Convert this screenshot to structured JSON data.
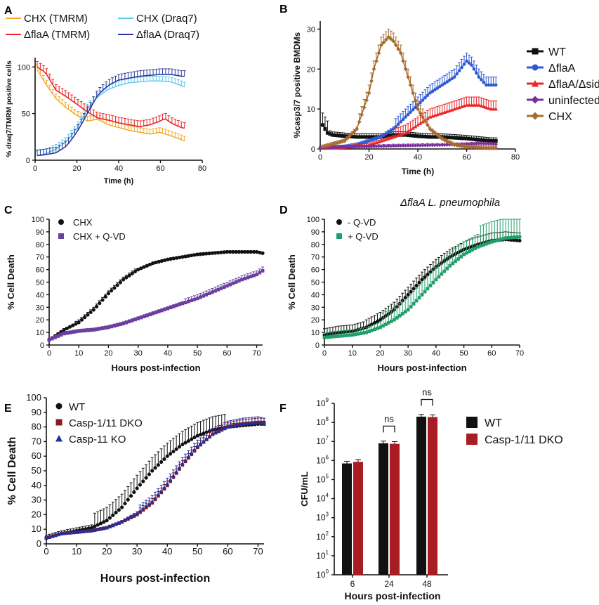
{
  "figure_labels": [
    "A",
    "B",
    "C",
    "D",
    "E",
    "F"
  ],
  "chart_data": [
    {
      "panel": "A",
      "type": "line",
      "xlabel": "Time (h)",
      "ylabel": "% draq7/TMRM positive cells",
      "xlim": [
        0,
        80
      ],
      "ylim": [
        0,
        110
      ],
      "xticks": [
        0,
        20,
        40,
        60,
        80
      ],
      "yticks": [
        0,
        50,
        100
      ],
      "legend": [
        "CHX (TMRM)",
        "CHX (Draq7)",
        "ΔflaA (TMRM)",
        "ΔflaA (Draq7)"
      ],
      "series": [
        {
          "name": "CHX (TMRM)",
          "color": "#f5a623",
          "x": [
            1,
            5,
            10,
            15,
            20,
            25,
            30,
            35,
            40,
            45,
            50,
            55,
            60,
            65,
            70,
            72
          ],
          "y": [
            97,
            82,
            66,
            56,
            48,
            42,
            44,
            38,
            35,
            32,
            30,
            28,
            30,
            26,
            22,
            20
          ]
        },
        {
          "name": "CHX (Draq7)",
          "color": "#5ec8ee",
          "x": [
            1,
            5,
            10,
            15,
            20,
            25,
            30,
            35,
            40,
            45,
            50,
            55,
            60,
            65,
            70,
            72
          ],
          "y": [
            5,
            7,
            12,
            20,
            34,
            55,
            68,
            76,
            80,
            83,
            84,
            85,
            85,
            84,
            80,
            78
          ]
        },
        {
          "name": "ΔflaA (TMRM)",
          "color": "#e8272a",
          "x": [
            1,
            5,
            10,
            15,
            20,
            25,
            30,
            35,
            40,
            45,
            50,
            55,
            60,
            62,
            65,
            70,
            72
          ],
          "y": [
            100,
            94,
            75,
            68,
            60,
            52,
            45,
            43,
            40,
            38,
            36,
            38,
            42,
            45,
            40,
            35,
            34
          ]
        },
        {
          "name": "ΔflaA (Draq7)",
          "color": "#2b3a9c",
          "x": [
            1,
            5,
            10,
            15,
            20,
            25,
            30,
            35,
            40,
            45,
            50,
            55,
            60,
            65,
            70,
            72
          ],
          "y": [
            5,
            6,
            8,
            15,
            30,
            50,
            70,
            80,
            86,
            88,
            90,
            91,
            92,
            92,
            90,
            90
          ]
        }
      ]
    },
    {
      "panel": "B",
      "type": "line",
      "xlabel": "Time (h)",
      "ylabel": "%casp3/7 positive BMDMs",
      "xlim": [
        0,
        80
      ],
      "ylim": [
        0,
        32
      ],
      "xticks": [
        0,
        20,
        40,
        60,
        80
      ],
      "yticks": [
        0,
        10,
        20,
        30
      ],
      "legend": [
        "WT",
        "ΔflaA",
        "ΔflaA/ΔsidF",
        "uninfected",
        "CHX"
      ],
      "series": [
        {
          "name": "WT",
          "color": "#111111",
          "x": [
            1,
            3,
            5,
            10,
            15,
            20,
            25,
            30,
            35,
            40,
            45,
            50,
            55,
            60,
            65,
            70,
            72
          ],
          "y": [
            6,
            4,
            3.5,
            3.2,
            3,
            3,
            3,
            3.5,
            3.5,
            3.2,
            3,
            3,
            2.8,
            2.6,
            2.3,
            2,
            2
          ]
        },
        {
          "name": "ΔflaA",
          "color": "#2f59d4",
          "x": [
            1,
            10,
            15,
            20,
            25,
            30,
            35,
            40,
            45,
            50,
            55,
            60,
            62,
            65,
            68,
            72
          ],
          "y": [
            0.2,
            0.5,
            1,
            2,
            3,
            5,
            8,
            11,
            14,
            16,
            18,
            22,
            21,
            18,
            16,
            16
          ]
        },
        {
          "name": "ΔflaA/ΔsidF",
          "color": "#e8272a",
          "x": [
            1,
            10,
            20,
            25,
            30,
            35,
            40,
            45,
            50,
            55,
            60,
            65,
            70,
            72
          ],
          "y": [
            0.2,
            0.4,
            1,
            2,
            3,
            4,
            6,
            8,
            9,
            10,
            11,
            11,
            10,
            10
          ]
        },
        {
          "name": "uninfected",
          "color": "#7b2f9e",
          "x": [
            0,
            10,
            20,
            30,
            40,
            50,
            60,
            65,
            70,
            72
          ],
          "y": [
            0.3,
            0.5,
            0.6,
            0.8,
            0.9,
            1,
            1.2,
            1.4,
            1.3,
            1.2
          ]
        },
        {
          "name": "CHX",
          "color": "#a86b2e",
          "x": [
            1,
            10,
            15,
            20,
            22,
            25,
            28,
            30,
            33,
            35,
            40,
            45,
            50,
            55,
            60,
            70,
            72
          ],
          "y": [
            0.5,
            2,
            5,
            14,
            20,
            26,
            28,
            27,
            24,
            20,
            10,
            5,
            2.5,
            1,
            0.5,
            0.2,
            0.2
          ]
        }
      ]
    },
    {
      "panel": "C",
      "type": "line",
      "xlabel": "Hours post-infection",
      "ylabel": "% Cell Death",
      "xlim": [
        0,
        72
      ],
      "ylim": [
        0,
        100
      ],
      "xticks": [
        0,
        10,
        20,
        30,
        40,
        50,
        60,
        70
      ],
      "yticks": [
        0,
        10,
        20,
        30,
        40,
        50,
        60,
        70,
        80,
        90,
        100
      ],
      "legend": [
        "CHX",
        "CHX + Q-VD"
      ],
      "series": [
        {
          "name": "CHX",
          "color": "#111111",
          "x": [
            0,
            5,
            10,
            15,
            20,
            25,
            30,
            35,
            40,
            45,
            50,
            55,
            60,
            65,
            70,
            72
          ],
          "y": [
            4,
            12,
            18,
            28,
            41,
            52,
            60,
            65,
            68,
            70,
            72,
            73,
            74,
            74,
            74,
            73
          ]
        },
        {
          "name": "CHX + Q-VD",
          "color": "#6b3fa0",
          "x": [
            0,
            5,
            10,
            15,
            20,
            25,
            30,
            35,
            40,
            45,
            50,
            55,
            60,
            65,
            70,
            72
          ],
          "y": [
            4,
            9,
            11,
            12,
            14,
            17,
            21,
            25,
            29,
            33,
            37,
            42,
            47,
            52,
            56,
            59
          ]
        }
      ]
    },
    {
      "panel": "D",
      "type": "line",
      "title": "ΔflaA L. pneumophila",
      "xlabel": "Hours post-infection",
      "ylabel": "% Cell Death",
      "xlim": [
        0,
        70
      ],
      "ylim": [
        0,
        100
      ],
      "xticks": [
        0,
        10,
        20,
        30,
        40,
        50,
        60,
        70
      ],
      "yticks": [
        0,
        10,
        20,
        30,
        40,
        50,
        60,
        70,
        80,
        90,
        100
      ],
      "legend": [
        "- Q-VD",
        "+ Q-VD"
      ],
      "series": [
        {
          "name": "- Q-VD",
          "color": "#111111",
          "x": [
            0,
            5,
            10,
            15,
            20,
            25,
            30,
            35,
            40,
            45,
            50,
            55,
            60,
            65,
            70
          ],
          "y": [
            8,
            10,
            11,
            14,
            20,
            28,
            40,
            52,
            62,
            70,
            76,
            80,
            83,
            84,
            83
          ]
        },
        {
          "name": "+ Q-VD",
          "color": "#1fa06a",
          "x": [
            0,
            5,
            10,
            15,
            20,
            25,
            30,
            35,
            40,
            45,
            50,
            55,
            60,
            65,
            70
          ],
          "y": [
            6,
            7,
            8,
            10,
            14,
            20,
            28,
            40,
            52,
            63,
            72,
            78,
            82,
            85,
            86
          ]
        }
      ]
    },
    {
      "panel": "E",
      "type": "line",
      "xlabel": "Hours post-infection",
      "ylabel": "% Cell Death",
      "xlim": [
        0,
        72
      ],
      "ylim": [
        0,
        100
      ],
      "xticks": [
        0,
        10,
        20,
        30,
        40,
        50,
        60,
        70
      ],
      "yticks": [
        0,
        10,
        20,
        30,
        40,
        50,
        60,
        70,
        80,
        90,
        100
      ],
      "legend": [
        "WT",
        "Casp-1/11 DKO",
        "Casp-11 KO"
      ],
      "series": [
        {
          "name": "WT",
          "color": "#111111",
          "x": [
            0,
            5,
            10,
            15,
            20,
            25,
            30,
            35,
            40,
            45,
            50,
            55,
            60,
            65,
            70,
            72
          ],
          "y": [
            4,
            7,
            9,
            11,
            16,
            25,
            38,
            50,
            60,
            68,
            74,
            78,
            80,
            81,
            82,
            82
          ]
        },
        {
          "name": "Casp-1/11 DKO",
          "color": "#8b1a1a",
          "x": [
            0,
            5,
            10,
            15,
            20,
            25,
            30,
            35,
            40,
            45,
            50,
            55,
            60,
            65,
            70,
            72
          ],
          "y": [
            4,
            7,
            8,
            9,
            11,
            15,
            20,
            28,
            40,
            54,
            66,
            75,
            80,
            82,
            83,
            83
          ]
        },
        {
          "name": "Casp-11 KO",
          "color": "#1f2fa0",
          "x": [
            0,
            5,
            10,
            15,
            20,
            25,
            30,
            35,
            40,
            45,
            50,
            55,
            60,
            65,
            70,
            72
          ],
          "y": [
            4,
            7,
            8,
            9,
            11,
            15,
            21,
            29,
            41,
            55,
            67,
            75,
            80,
            82,
            83,
            82
          ]
        }
      ]
    },
    {
      "panel": "F",
      "type": "bar",
      "xlabel": "Hours post-infection",
      "ylabel": "CFU/mL",
      "yscale": "log",
      "ylim": [
        1,
        1000000000
      ],
      "ytick_exponents": [
        0,
        1,
        2,
        3,
        4,
        5,
        6,
        7,
        8,
        9
      ],
      "categories": [
        "6",
        "24",
        "48"
      ],
      "legend": [
        "WT",
        "Casp-1/11 DKO"
      ],
      "annotations": [
        "ns",
        "ns"
      ],
      "series": [
        {
          "name": "WT",
          "color": "#111111",
          "values": [
            700000,
            8000000,
            200000000
          ]
        },
        {
          "name": "Casp-1/11 DKO",
          "color": "#a81c23",
          "values": [
            850000,
            7500000,
            190000000
          ]
        }
      ]
    }
  ]
}
